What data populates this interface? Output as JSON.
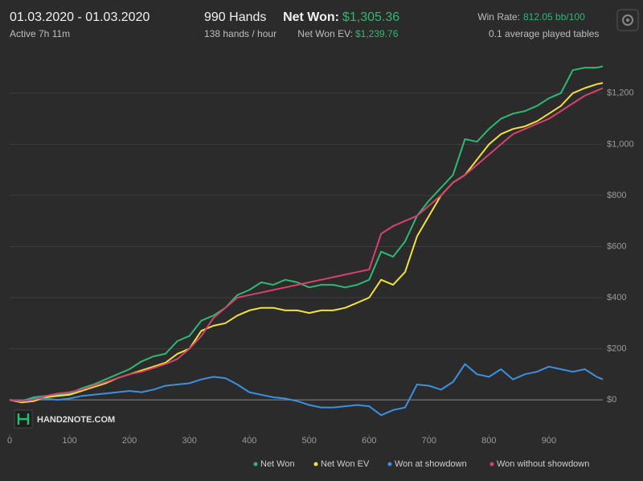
{
  "header": {
    "date_range": "01.03.2020 - 01.03.2020",
    "active": "Active 7h 11m",
    "hands": "990 Hands",
    "hands_per_hour": "138 hands / hour",
    "net_won_label": "Net Won:",
    "net_won_value": "$1,305.36",
    "net_won_ev_label": "Net Won  EV:",
    "net_won_ev_value": "$1,239.76",
    "win_rate_label": "Win Rate:",
    "win_rate_value": "812.05 bb/100",
    "tables": "0.1 average played tables"
  },
  "logo": "HAND2NOTE.COM",
  "chart_data": {
    "type": "line",
    "x": [
      0,
      20,
      40,
      60,
      80,
      100,
      120,
      140,
      160,
      180,
      200,
      220,
      240,
      260,
      280,
      300,
      320,
      340,
      360,
      380,
      400,
      420,
      440,
      460,
      480,
      500,
      520,
      540,
      560,
      580,
      600,
      620,
      640,
      660,
      680,
      700,
      720,
      740,
      760,
      780,
      800,
      820,
      840,
      860,
      880,
      900,
      920,
      940,
      960,
      980,
      990
    ],
    "series": [
      {
        "name": "Net Won",
        "color": "#2eb872",
        "values": [
          0,
          -5,
          10,
          15,
          20,
          25,
          45,
          60,
          80,
          100,
          120,
          150,
          170,
          180,
          230,
          250,
          310,
          330,
          360,
          410,
          430,
          460,
          450,
          470,
          460,
          440,
          450,
          450,
          440,
          450,
          470,
          580,
          560,
          620,
          720,
          780,
          830,
          880,
          1020,
          1010,
          1060,
          1100,
          1120,
          1130,
          1150,
          1180,
          1200,
          1290,
          1300,
          1300,
          1305
        ]
      },
      {
        "name": "Net Won  EV",
        "color": "#f2e23a",
        "values": [
          0,
          -10,
          -5,
          10,
          15,
          20,
          35,
          50,
          65,
          85,
          100,
          115,
          130,
          145,
          180,
          200,
          270,
          290,
          300,
          330,
          350,
          360,
          360,
          350,
          350,
          340,
          350,
          350,
          360,
          380,
          400,
          470,
          450,
          500,
          640,
          720,
          800,
          850,
          880,
          940,
          1000,
          1040,
          1060,
          1070,
          1090,
          1120,
          1150,
          1200,
          1220,
          1235,
          1240
        ]
      },
      {
        "name": "Won at showdown",
        "color": "#3d8fe0",
        "values": [
          0,
          -5,
          5,
          5,
          0,
          5,
          15,
          20,
          25,
          30,
          35,
          30,
          40,
          55,
          60,
          65,
          80,
          90,
          85,
          60,
          30,
          20,
          10,
          5,
          -5,
          -20,
          -30,
          -30,
          -25,
          -20,
          -25,
          -60,
          -40,
          -30,
          60,
          55,
          40,
          70,
          140,
          100,
          90,
          120,
          80,
          100,
          110,
          130,
          120,
          110,
          120,
          90,
          80
        ]
      },
      {
        "name": "Won without showdown",
        "color": "#d6426e",
        "values": [
          0,
          -5,
          0,
          15,
          25,
          30,
          40,
          55,
          70,
          85,
          100,
          110,
          125,
          140,
          160,
          200,
          250,
          320,
          360,
          400,
          410,
          420,
          430,
          440,
          450,
          460,
          470,
          480,
          490,
          500,
          510,
          650,
          680,
          700,
          720,
          760,
          800,
          850,
          880,
          920,
          960,
          1000,
          1040,
          1060,
          1080,
          1100,
          1130,
          1160,
          1190,
          1210,
          1220
        ]
      }
    ],
    "xlim": [
      0,
      990
    ],
    "xticks": [
      0,
      100,
      200,
      300,
      400,
      500,
      600,
      700,
      800,
      900
    ],
    "ylim": [
      -135,
      1360
    ],
    "yticks": [
      {
        "value": 0,
        "label": "$0"
      },
      {
        "value": 200,
        "label": "$200"
      },
      {
        "value": 400,
        "label": "$400"
      },
      {
        "value": 600,
        "label": "$600"
      },
      {
        "value": 800,
        "label": "$800"
      },
      {
        "value": 1000,
        "label": "$1,000"
      },
      {
        "value": 1200,
        "label": "$1,200"
      }
    ],
    "grid": true
  }
}
